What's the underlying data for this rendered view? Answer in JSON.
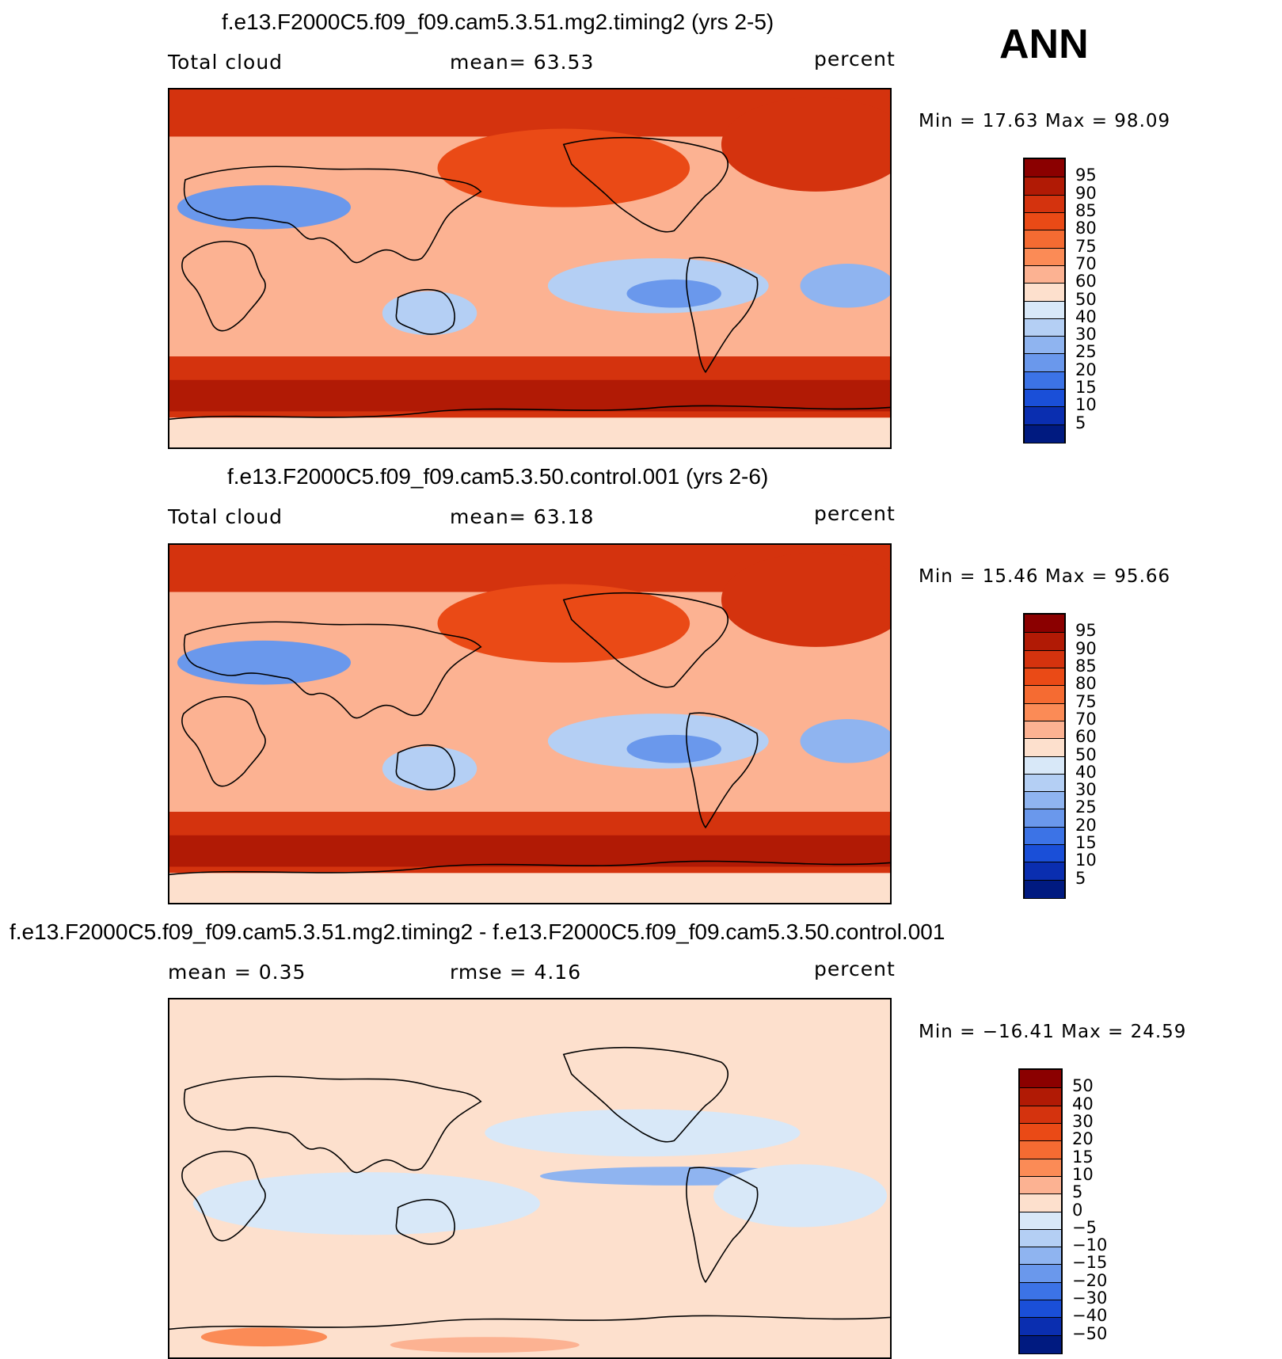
{
  "season": "ANN",
  "panels": [
    {
      "title": "f.e13.F2000C5.f09_f09.cam5.3.51.mg2.timing2 (yrs 2-5)",
      "left": "Total cloud",
      "center": "mean=   63.53",
      "right": "percent",
      "minmax": "Min =    17.63  Max =    98.09",
      "levels": [
        "95",
        "90",
        "85",
        "80",
        "75",
        "70",
        "60",
        "50",
        "40",
        "30",
        "25",
        "20",
        "15",
        "10",
        "5"
      ],
      "colors": [
        "#8b0000",
        "#b11a05",
        "#d4330e",
        "#ea4a16",
        "#f56b32",
        "#fb8b56",
        "#fcb292",
        "#fde0cd",
        "#d8e8f8",
        "#b4cff4",
        "#8fb4f0",
        "#6a98ec",
        "#3c73e6",
        "#1a4fd8",
        "#0a2eb0",
        "#001a80"
      ],
      "map_style": "abs"
    },
    {
      "title": "f.e13.F2000C5.f09_f09.cam5.3.50.control.001 (yrs 2-6)",
      "left": "Total cloud",
      "center": "mean=   63.18",
      "right": "percent",
      "minmax": "Min =    15.46  Max =    95.66",
      "levels": [
        "95",
        "90",
        "85",
        "80",
        "75",
        "70",
        "60",
        "50",
        "40",
        "30",
        "25",
        "20",
        "15",
        "10",
        "5"
      ],
      "colors": [
        "#8b0000",
        "#b11a05",
        "#d4330e",
        "#ea4a16",
        "#f56b32",
        "#fb8b56",
        "#fcb292",
        "#fde0cd",
        "#d8e8f8",
        "#b4cff4",
        "#8fb4f0",
        "#6a98ec",
        "#3c73e6",
        "#1a4fd8",
        "#0a2eb0",
        "#001a80"
      ],
      "map_style": "abs"
    },
    {
      "title": "f.e13.F2000C5.f09_f09.cam5.3.51.mg2.timing2 - f.e13.F2000C5.f09_f09.cam5.3.50.control.001",
      "left": "mean =     0.35",
      "center": "rmse =     4.16",
      "right": "percent",
      "minmax": "Min = −16.41  Max =    24.59",
      "levels": [
        "50",
        "40",
        "30",
        "20",
        "15",
        "10",
        "5",
        "0",
        "−5",
        "−10",
        "−15",
        "−20",
        "−30",
        "−40",
        "−50"
      ],
      "colors": [
        "#8b0000",
        "#b11a05",
        "#d4330e",
        "#ea4a16",
        "#f56b32",
        "#fb8b56",
        "#fcb292",
        "#fde0cd",
        "#d8e8f8",
        "#b4cff4",
        "#8fb4f0",
        "#6a98ec",
        "#3c73e6",
        "#1a4fd8",
        "#0a2eb0",
        "#001a80"
      ],
      "map_style": "diff"
    }
  ],
  "chart_data": [
    {
      "type": "heatmap",
      "title": "f.e13.F2000C5.f09_f09.cam5.3.51.mg2.timing2 (yrs 2-5)",
      "variable": "Total cloud",
      "units": "percent",
      "mean": 63.53,
      "min": 17.63,
      "max": 98.09,
      "contour_levels": [
        5,
        10,
        15,
        20,
        25,
        30,
        40,
        50,
        60,
        70,
        75,
        80,
        85,
        90,
        95
      ]
    },
    {
      "type": "heatmap",
      "title": "f.e13.F2000C5.f09_f09.cam5.3.50.control.001 (yrs 2-6)",
      "variable": "Total cloud",
      "units": "percent",
      "mean": 63.18,
      "min": 15.46,
      "max": 95.66,
      "contour_levels": [
        5,
        10,
        15,
        20,
        25,
        30,
        40,
        50,
        60,
        70,
        75,
        80,
        85,
        90,
        95
      ]
    },
    {
      "type": "heatmap",
      "title": "f.e13.F2000C5.f09_f09.cam5.3.51.mg2.timing2 - f.e13.F2000C5.f09_f09.cam5.3.50.control.001",
      "units": "percent",
      "mean": 0.35,
      "rmse": 4.16,
      "min": -16.41,
      "max": 24.59,
      "contour_levels": [
        -50,
        -40,
        -30,
        -20,
        -15,
        -10,
        -5,
        0,
        5,
        10,
        15,
        20,
        30,
        40,
        50
      ]
    }
  ]
}
